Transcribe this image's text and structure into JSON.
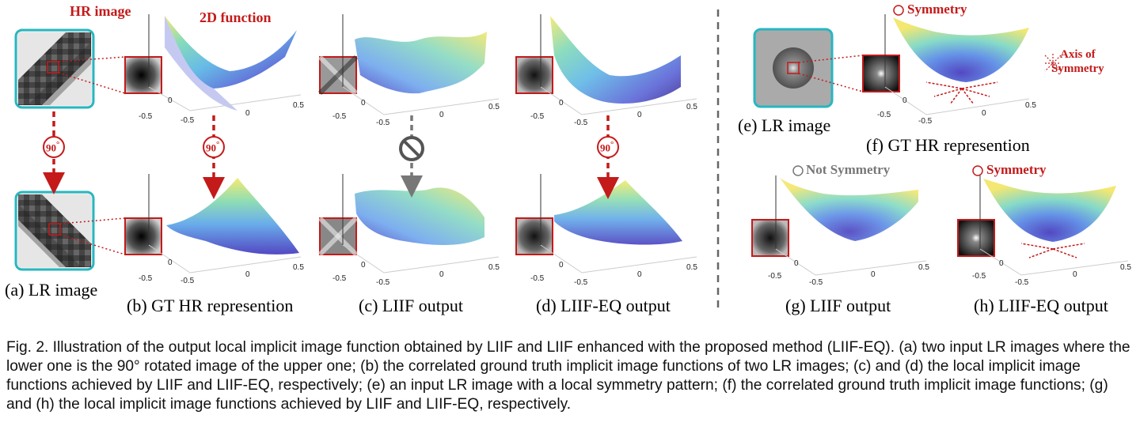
{
  "annotations": {
    "hr_image": "HR image",
    "function_2d": "2D function",
    "rot_90": "90",
    "degree": "°",
    "symmetry": "Symmetry",
    "not_symmetry": "Not Symmetry",
    "axis_of_symmetry_1": "Axis of",
    "axis_of_symmetry_2": "Symmetry"
  },
  "panels": {
    "a": "(a) LR image",
    "b": "(b) GT HR represention",
    "c": "(c) LIIF output",
    "d": "(d) LIIF-EQ output",
    "e": "(e) LR image",
    "f": "(f) GT HR represention",
    "g": "(g) LIIF output",
    "h": "(h) LIIF-EQ output"
  },
  "axis_ticks": {
    "neg": "-0.5",
    "zero": "0",
    "pos": "0.5"
  },
  "caption": {
    "label": "Fig. 2.",
    "text": " Illustration of the output local implicit image function obtained by LIIF and LIIF enhanced with the proposed method (LIIF-EQ). (a) two input LR images where the lower one is the 90° rotated image of the upper one; (b) the correlated ground truth implicit image functions of two LR images; (c) and (d) the local implicit image functions achieved by LIIF and LIIF-EQ, respectively; (e) an input LR image with a local symmetry pattern; (f) the correlated ground truth implicit image functions; (g) and (h) the local implicit image functions achieved by LIIF and LIIF-EQ, respectively."
  },
  "colors": {
    "accent_red": "#c41a1a",
    "teal_frame": "#27b7c0",
    "gray_arrow": "#777777"
  }
}
